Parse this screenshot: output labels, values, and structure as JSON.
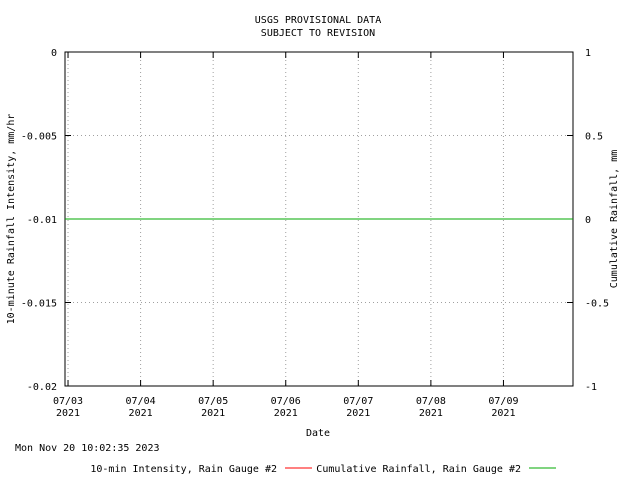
{
  "chart_data": {
    "type": "line",
    "title": "USGS PROVISIONAL DATA",
    "subtitle": "SUBJECT TO REVISION",
    "xlabel": "Date",
    "ylabel_left": "10-minute Rainfall Intensity, mm/hr",
    "ylabel_right": "Cumulative Rainfall, mm",
    "x_ticks": [
      {
        "date": "2021-07-03",
        "line1": "07/03",
        "line2": "2021"
      },
      {
        "date": "2021-07-04",
        "line1": "07/04",
        "line2": "2021"
      },
      {
        "date": "2021-07-05",
        "line1": "07/05",
        "line2": "2021"
      },
      {
        "date": "2021-07-06",
        "line1": "07/06",
        "line2": "2021"
      },
      {
        "date": "2021-07-07",
        "line1": "07/07",
        "line2": "2021"
      },
      {
        "date": "2021-07-08",
        "line1": "07/08",
        "line2": "2021"
      },
      {
        "date": "2021-07-09",
        "line1": "07/09",
        "line2": "2021"
      }
    ],
    "xlim": [
      "2021-07-02T23:00",
      "2021-07-09T23:00"
    ],
    "y_left_ticks": [
      "0",
      "-0.005",
      "-0.01",
      "-0.015",
      "-0.02"
    ],
    "y_left_lim": [
      -0.02,
      0
    ],
    "y_right_ticks": [
      "1",
      "0.5",
      "0",
      "-0.5",
      "-1"
    ],
    "y_right_lim": [
      -1,
      1
    ],
    "grid": true,
    "legend_position": "bottom",
    "series": [
      {
        "name": "10-min Intensity, Rain Gauge #2",
        "color": "#ff0000",
        "axis": "left",
        "x": [],
        "values": []
      },
      {
        "name": "Cumulative Rainfall, Rain Gauge #2",
        "color": "#00aa00",
        "axis": "right",
        "x": [
          "2021-07-02T23:00",
          "2021-07-09T23:00"
        ],
        "values": [
          0,
          0
        ]
      }
    ]
  },
  "footer": {
    "timestamp": "Mon Nov 20 10:02:35 2023"
  }
}
